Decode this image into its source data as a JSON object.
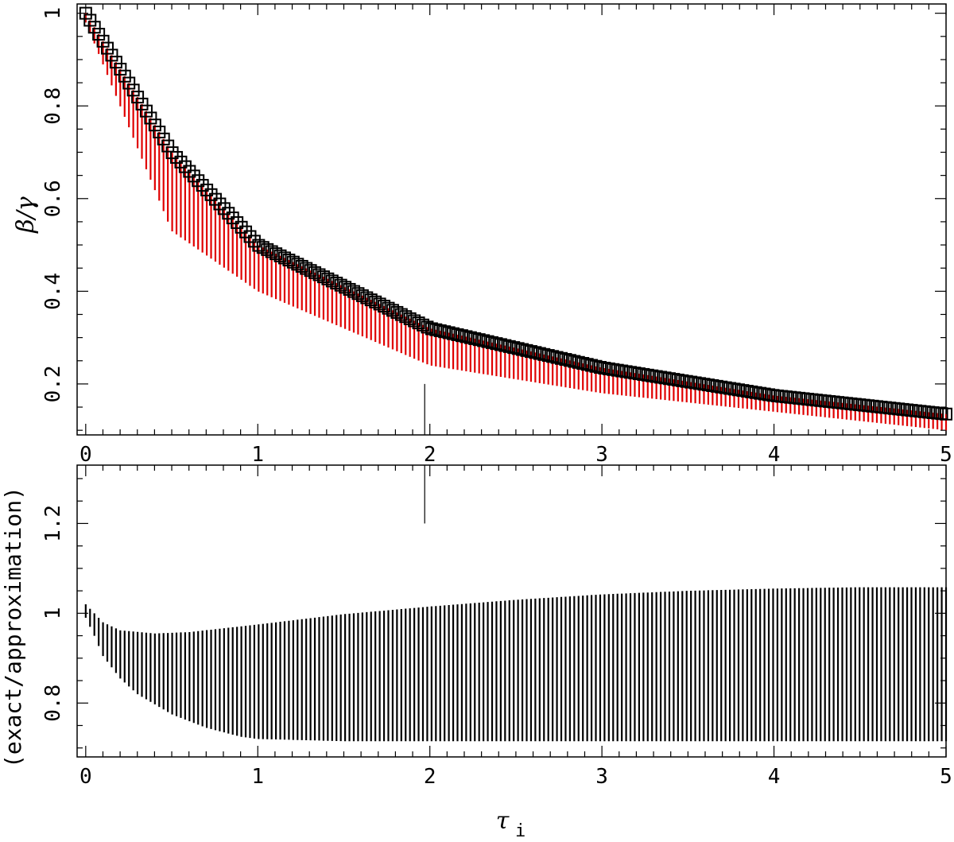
{
  "chart_data": [
    {
      "type": "scatter",
      "panel": "top",
      "ylabel": "β/γ",
      "xlim": [
        -0.05,
        5.0
      ],
      "ylim": [
        0.09,
        1.02
      ],
      "xticks": [
        "0",
        "1",
        "2",
        "3",
        "4",
        "5"
      ],
      "yticks": [
        "0.2",
        "0.4",
        "0.6",
        "0.8",
        "1"
      ],
      "grid": false,
      "marker_tick": {
        "x": 1.97,
        "y_from": 0.09,
        "y_to": 0.2
      },
      "series": [
        {
          "kind": "squares",
          "color": "#000000",
          "tau_start": 0.0,
          "tau_end": 5.0,
          "count": 200,
          "samples": [
            [
              0.0,
              1.0
            ],
            [
              0.5,
              0.7
            ],
            [
              1.0,
              0.5
            ],
            [
              2.0,
              0.32
            ],
            [
              3.0,
              0.235
            ],
            [
              4.0,
              0.175
            ],
            [
              5.0,
              0.135
            ]
          ]
        },
        {
          "kind": "vertical-segments",
          "color": "#e00000",
          "samples_top": [
            [
              0.0,
              1.0
            ],
            [
              0.5,
              0.7
            ],
            [
              1.0,
              0.5
            ],
            [
              2.0,
              0.32
            ],
            [
              3.0,
              0.235
            ],
            [
              4.0,
              0.175
            ],
            [
              5.0,
              0.135
            ]
          ],
          "samples_bottom": [
            [
              0.0,
              0.98
            ],
            [
              0.5,
              0.53
            ],
            [
              1.0,
              0.4
            ],
            [
              2.0,
              0.24
            ],
            [
              3.0,
              0.18
            ],
            [
              4.0,
              0.14
            ],
            [
              5.0,
              0.1
            ]
          ]
        }
      ]
    },
    {
      "type": "scatter",
      "panel": "bottom",
      "xlabel": "τ",
      "xlabel_sub": "i",
      "ylabel": "(exact/approximation)",
      "xlim": [
        -0.05,
        5.0
      ],
      "ylim": [
        0.68,
        1.33
      ],
      "xticks": [
        "0",
        "1",
        "2",
        "3",
        "4",
        "5"
      ],
      "yticks": [
        "0.8",
        "1",
        "1.2"
      ],
      "grid": false,
      "marker_tick": {
        "x": 1.97,
        "y_from": 1.2,
        "y_to": 1.33
      },
      "series": [
        {
          "kind": "vertical-segments",
          "color": "#000000",
          "samples_top": [
            [
              0.0,
              1.02
            ],
            [
              0.1,
              0.98
            ],
            [
              0.2,
              0.962
            ],
            [
              0.4,
              0.955
            ],
            [
              0.6,
              0.958
            ],
            [
              1.0,
              0.975
            ],
            [
              1.5,
              0.998
            ],
            [
              2.0,
              1.015
            ],
            [
              2.5,
              1.03
            ],
            [
              3.0,
              1.042
            ],
            [
              3.5,
              1.05
            ],
            [
              4.0,
              1.055
            ],
            [
              4.5,
              1.058
            ],
            [
              5.0,
              1.058
            ]
          ],
          "samples_bottom": [
            [
              0.0,
              0.99
            ],
            [
              0.05,
              0.95
            ],
            [
              0.1,
              0.905
            ],
            [
              0.2,
              0.855
            ],
            [
              0.3,
              0.82
            ],
            [
              0.5,
              0.775
            ],
            [
              0.7,
              0.745
            ],
            [
              0.9,
              0.725
            ],
            [
              1.0,
              0.72
            ],
            [
              1.5,
              0.715
            ],
            [
              3.0,
              0.715
            ],
            [
              5.0,
              0.715
            ]
          ]
        }
      ]
    }
  ]
}
